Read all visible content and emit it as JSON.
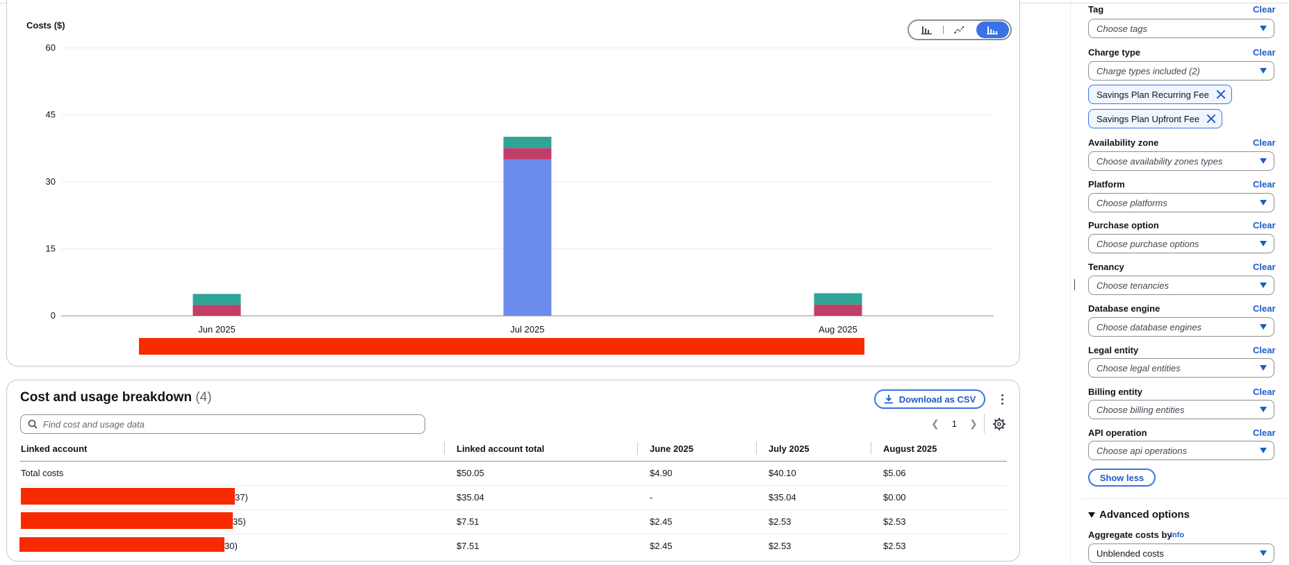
{
  "chart": {
    "toggle": {
      "bar": "bar-chart-icon",
      "line": "line-chart-icon",
      "stacked": "stacked-bar-chart-icon",
      "active": "stacked"
    },
    "colors": {
      "blue": "#6b8cea",
      "pink": "#c33d69",
      "teal": "#2ea597",
      "redaction": "#f72a00"
    }
  },
  "chart_data": {
    "type": "bar",
    "stacked": true,
    "title": "",
    "ylabel": "Costs ($)",
    "xlabel": "",
    "categories": [
      "Jun 2025",
      "Jul 2025",
      "Aug 2025"
    ],
    "yticks": [
      0,
      15,
      30,
      45,
      60
    ],
    "ylim": [
      0,
      60
    ],
    "grid": true,
    "series": [
      {
        "color": "#6b8cea",
        "values": [
          0,
          35.04,
          0
        ]
      },
      {
        "color": "#c33d69",
        "values": [
          2.45,
          2.53,
          2.53
        ]
      },
      {
        "color": "#2ea597",
        "values": [
          2.45,
          2.53,
          2.53
        ]
      }
    ]
  },
  "breakdown": {
    "title": "Cost and usage breakdown",
    "count": "(4)",
    "download_label": "Download as CSV",
    "search_placeholder": "Find cost and usage data",
    "page": "1",
    "columns": [
      "Linked account",
      "Linked account total",
      "June 2025",
      "July 2025",
      "August 2025"
    ],
    "rows": [
      {
        "account": "Total costs",
        "total": "$50.05",
        "jun": "$4.90",
        "jul": "$40.10",
        "aug": "$5.06"
      },
      {
        "account": "37)",
        "total": "$35.04",
        "jun": "-",
        "jul": "$35.04",
        "aug": "$0.00"
      },
      {
        "account": "35)",
        "total": "$7.51",
        "jun": "$2.45",
        "jul": "$2.53",
        "aug": "$2.53"
      },
      {
        "account": "30)",
        "total": "$7.51",
        "jun": "$2.45",
        "jul": "$2.53",
        "aug": "$2.53"
      }
    ]
  },
  "filters": {
    "clear_label": "Clear",
    "tag": {
      "label": "Tag",
      "placeholder": "Choose tags"
    },
    "charge_type": {
      "label": "Charge type",
      "value": "Charge types included (2)",
      "tokens": [
        "Savings Plan Recurring Fee",
        "Savings Plan Upfront Fee"
      ]
    },
    "availability_zone": {
      "label": "Availability zone",
      "placeholder": "Choose availability zones types"
    },
    "platform": {
      "label": "Platform",
      "placeholder": "Choose platforms"
    },
    "purchase_option": {
      "label": "Purchase option",
      "placeholder": "Choose purchase options"
    },
    "tenancy": {
      "label": "Tenancy",
      "placeholder": "Choose tenancies"
    },
    "database_engine": {
      "label": "Database engine",
      "placeholder": "Choose database engines"
    },
    "legal_entity": {
      "label": "Legal entity",
      "placeholder": "Choose legal entities"
    },
    "billing_entity": {
      "label": "Billing entity",
      "placeholder": "Choose billing entities"
    },
    "api_operation": {
      "label": "API operation",
      "placeholder": "Choose api operations"
    },
    "show_less": "Show less",
    "advanced": {
      "title": "Advanced options",
      "aggregate_label": "Aggregate costs by",
      "info": "Info",
      "aggregate_value": "Unblended costs"
    }
  }
}
